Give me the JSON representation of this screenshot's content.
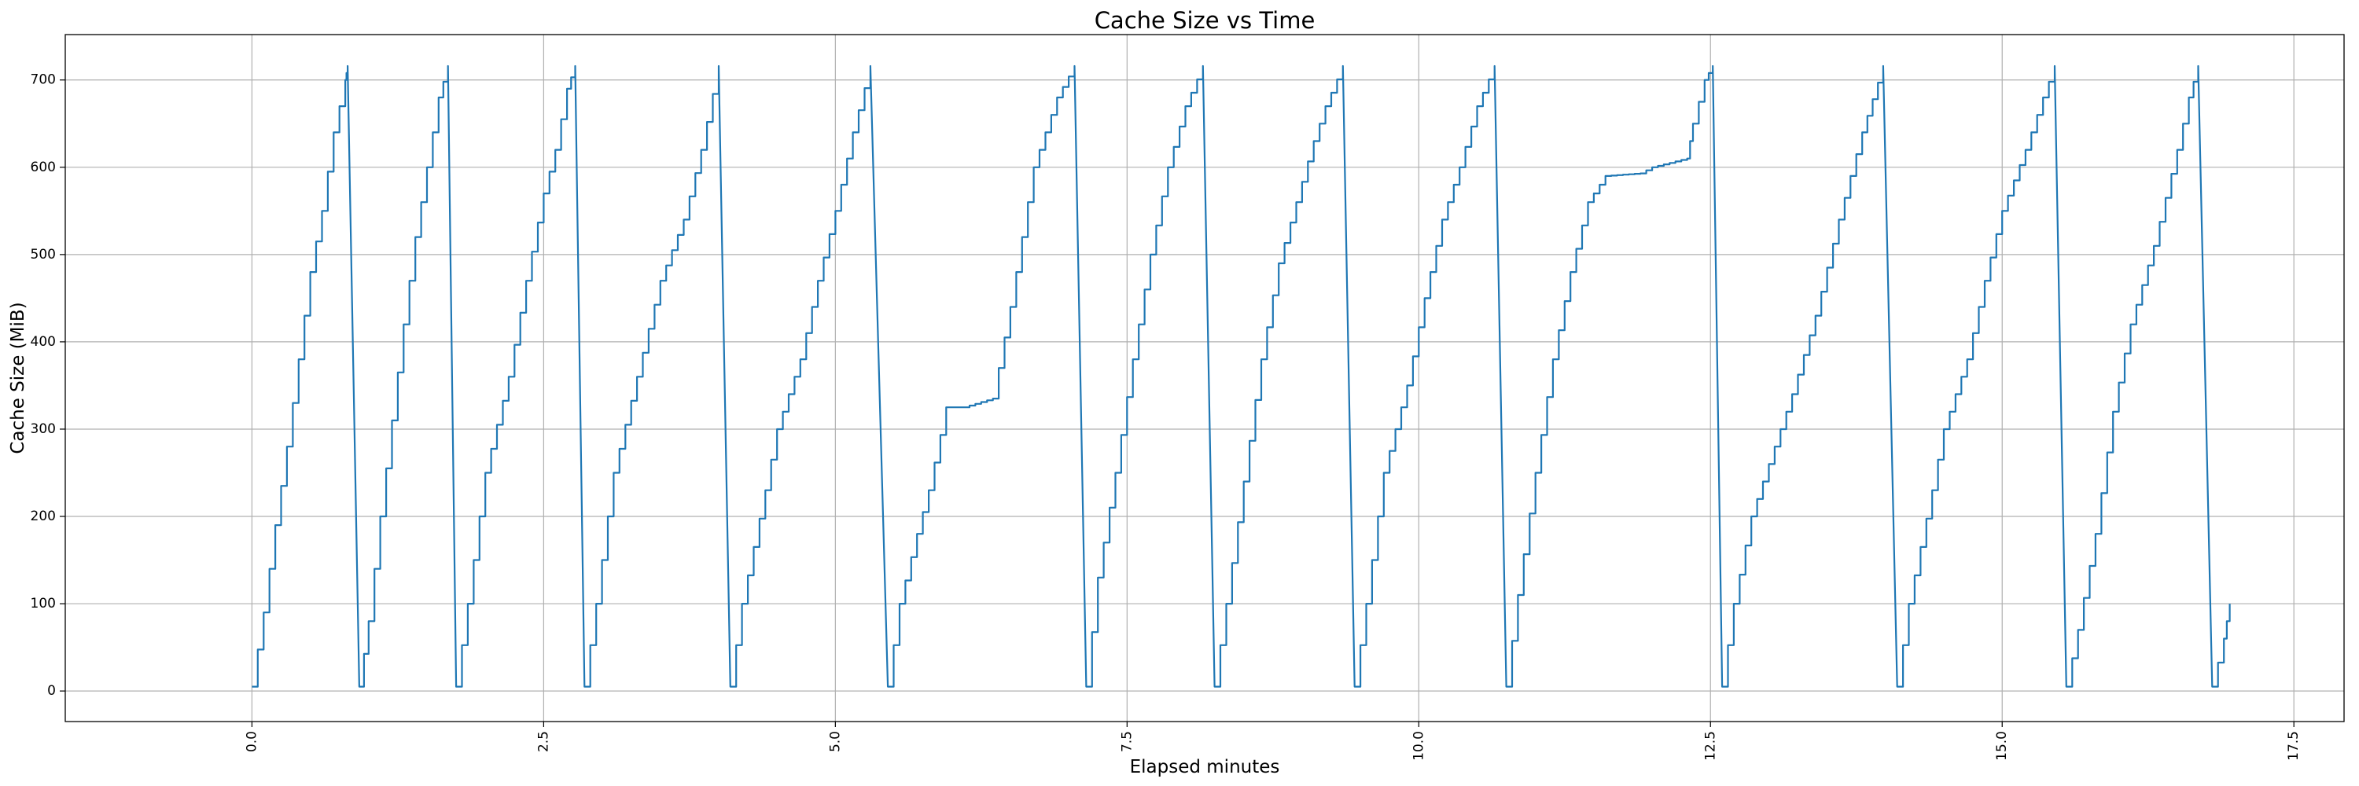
{
  "chart_data": {
    "type": "line",
    "title": "Cache Size vs Time",
    "xlabel": "Elapsed minutes",
    "ylabel": "Cache Size (MiB)",
    "xlim": [
      -1.6,
      17.93
    ],
    "ylim": [
      -35,
      752
    ],
    "x_ticks": [
      0.0,
      2.5,
      5.0,
      7.5,
      10.0,
      12.5,
      15.0,
      17.5
    ],
    "x_tick_labels": [
      "0.0",
      "2.5",
      "5.0",
      "7.5",
      "10.0",
      "12.5",
      "15.0",
      "17.5"
    ],
    "y_ticks": [
      0,
      100,
      200,
      300,
      400,
      500,
      600,
      700
    ],
    "y_tick_labels": [
      "0",
      "100",
      "200",
      "300",
      "400",
      "500",
      "600",
      "700"
    ],
    "grid": true,
    "line_color": "#1f77b4",
    "series": [
      {
        "values": [
          [
            0.0,
            5
          ],
          [
            0.1,
            90
          ],
          [
            0.2,
            190
          ],
          [
            0.3,
            280
          ],
          [
            0.4,
            380
          ],
          [
            0.5,
            480
          ],
          [
            0.6,
            550
          ],
          [
            0.7,
            640
          ],
          [
            0.8,
            700
          ],
          [
            0.82,
            716
          ],
          [
            0.92,
            5
          ],
          [
            1.0,
            80
          ],
          [
            1.1,
            200
          ],
          [
            1.2,
            310
          ],
          [
            1.3,
            420
          ],
          [
            1.4,
            520
          ],
          [
            1.5,
            600
          ],
          [
            1.6,
            680
          ],
          [
            1.68,
            716
          ],
          [
            1.75,
            5
          ],
          [
            1.85,
            100
          ],
          [
            2.0,
            250
          ],
          [
            2.2,
            360
          ],
          [
            2.35,
            470
          ],
          [
            2.5,
            570
          ],
          [
            2.6,
            620
          ],
          [
            2.7,
            690
          ],
          [
            2.77,
            716
          ],
          [
            2.85,
            5
          ],
          [
            2.95,
            100
          ],
          [
            3.1,
            250
          ],
          [
            3.3,
            360
          ],
          [
            3.5,
            470
          ],
          [
            3.7,
            540
          ],
          [
            3.85,
            620
          ],
          [
            4.0,
            716
          ],
          [
            4.1,
            5
          ],
          [
            4.2,
            100
          ],
          [
            4.4,
            230
          ],
          [
            4.5,
            300
          ],
          [
            4.7,
            380
          ],
          [
            4.85,
            470
          ],
          [
            5.0,
            550
          ],
          [
            5.15,
            640
          ],
          [
            5.3,
            716
          ],
          [
            5.45,
            5
          ],
          [
            5.55,
            100
          ],
          [
            5.7,
            180
          ],
          [
            5.8,
            230
          ],
          [
            5.95,
            325
          ],
          [
            6.1,
            325
          ],
          [
            6.35,
            335
          ],
          [
            6.5,
            440
          ],
          [
            6.7,
            600
          ],
          [
            6.9,
            680
          ],
          [
            7.05,
            716
          ],
          [
            7.15,
            5
          ],
          [
            7.25,
            130
          ],
          [
            7.4,
            250
          ],
          [
            7.55,
            380
          ],
          [
            7.7,
            500
          ],
          [
            7.85,
            600
          ],
          [
            8.0,
            670
          ],
          [
            8.15,
            716
          ],
          [
            8.25,
            5
          ],
          [
            8.35,
            100
          ],
          [
            8.5,
            240
          ],
          [
            8.65,
            380
          ],
          [
            8.8,
            490
          ],
          [
            8.95,
            560
          ],
          [
            9.1,
            630
          ],
          [
            9.2,
            670
          ],
          [
            9.35,
            716
          ],
          [
            9.45,
            5
          ],
          [
            9.55,
            100
          ],
          [
            9.7,
            250
          ],
          [
            9.9,
            350
          ],
          [
            10.05,
            450
          ],
          [
            10.2,
            540
          ],
          [
            10.35,
            600
          ],
          [
            10.5,
            670
          ],
          [
            10.65,
            716
          ],
          [
            10.75,
            5
          ],
          [
            10.85,
            110
          ],
          [
            11.0,
            250
          ],
          [
            11.15,
            380
          ],
          [
            11.3,
            480
          ],
          [
            11.45,
            560
          ],
          [
            11.6,
            590
          ],
          [
            11.9,
            593
          ],
          [
            12.0,
            600
          ],
          [
            12.3,
            610
          ],
          [
            12.35,
            650
          ],
          [
            12.45,
            700
          ],
          [
            12.52,
            716
          ],
          [
            12.6,
            5
          ],
          [
            12.7,
            100
          ],
          [
            12.85,
            200
          ],
          [
            13.0,
            260
          ],
          [
            13.2,
            340
          ],
          [
            13.4,
            430
          ],
          [
            13.6,
            540
          ],
          [
            13.8,
            640
          ],
          [
            13.98,
            716
          ],
          [
            14.1,
            5
          ],
          [
            14.2,
            100
          ],
          [
            14.4,
            230
          ],
          [
            14.5,
            300
          ],
          [
            14.7,
            380
          ],
          [
            14.85,
            470
          ],
          [
            15.0,
            550
          ],
          [
            15.2,
            620
          ],
          [
            15.35,
            680
          ],
          [
            15.45,
            716
          ],
          [
            15.55,
            5
          ],
          [
            15.65,
            70
          ],
          [
            15.8,
            180
          ],
          [
            15.95,
            320
          ],
          [
            16.1,
            420
          ],
          [
            16.3,
            510
          ],
          [
            16.5,
            620
          ],
          [
            16.6,
            680
          ],
          [
            16.68,
            716
          ],
          [
            16.8,
            5
          ],
          [
            16.9,
            60
          ],
          [
            16.95,
            100
          ]
        ]
      }
    ]
  }
}
